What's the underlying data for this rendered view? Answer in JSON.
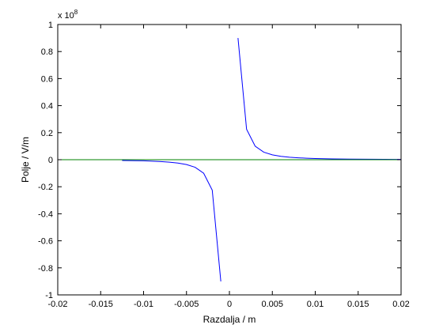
{
  "chart_data": {
    "type": "line",
    "title": "",
    "xlabel": "Razdalja  / m",
    "ylabel": "Polje   / V/m",
    "y_scale_label": "x 10",
    "y_scale_exponent": "8",
    "xlim": [
      -0.02,
      0.02
    ],
    "ylim": [
      -1,
      1
    ],
    "grid": false,
    "legend": "none",
    "x_ticks": [
      -0.02,
      -0.015,
      -0.01,
      -0.005,
      0,
      0.005,
      0.01,
      0.015,
      0.02
    ],
    "x_tick_labels": [
      "-0.02",
      "-0.015",
      "-0.01",
      "-0.005",
      "0",
      "0.005",
      "0.01",
      "0.015",
      "0.02"
    ],
    "y_ticks": [
      -1,
      -0.8,
      -0.6,
      -0.4,
      -0.2,
      0,
      0.2,
      0.4,
      0.6,
      0.8,
      1
    ],
    "y_tick_labels": [
      "-1",
      "-0.8",
      "-0.6",
      "-0.4",
      "-0.2",
      "0",
      "0.2",
      "0.4",
      "0.6",
      "0.8",
      "1"
    ],
    "series": [
      {
        "color": "#0000ff",
        "segments": [
          [
            [
              -0.0125,
              -0.006
            ],
            [
              -0.011,
              -0.007
            ],
            [
              -0.01,
              -0.008
            ],
            [
              -0.009,
              -0.011
            ],
            [
              -0.008,
              -0.014
            ],
            [
              -0.007,
              -0.018
            ],
            [
              -0.006,
              -0.025
            ],
            [
              -0.005,
              -0.036
            ],
            [
              -0.004,
              -0.056
            ],
            [
              -0.003,
              -0.1
            ],
            [
              -0.002,
              -0.225
            ],
            [
              -0.001,
              -0.9
            ]
          ],
          [
            [
              0.001,
              0.9
            ],
            [
              0.002,
              0.225
            ],
            [
              0.003,
              0.1
            ],
            [
              0.004,
              0.056
            ],
            [
              0.005,
              0.036
            ],
            [
              0.006,
              0.025
            ],
            [
              0.007,
              0.018
            ],
            [
              0.008,
              0.014
            ],
            [
              0.009,
              0.011
            ],
            [
              0.01,
              0.009
            ],
            [
              0.012,
              0.006
            ],
            [
              0.014,
              0.0046
            ],
            [
              0.016,
              0.0035
            ],
            [
              0.018,
              0.0028
            ],
            [
              0.02,
              0.0022
            ]
          ]
        ]
      },
      {
        "color": "#008000",
        "segments": [
          [
            [
              -0.02,
              0
            ],
            [
              0.02,
              0
            ]
          ]
        ]
      }
    ]
  }
}
